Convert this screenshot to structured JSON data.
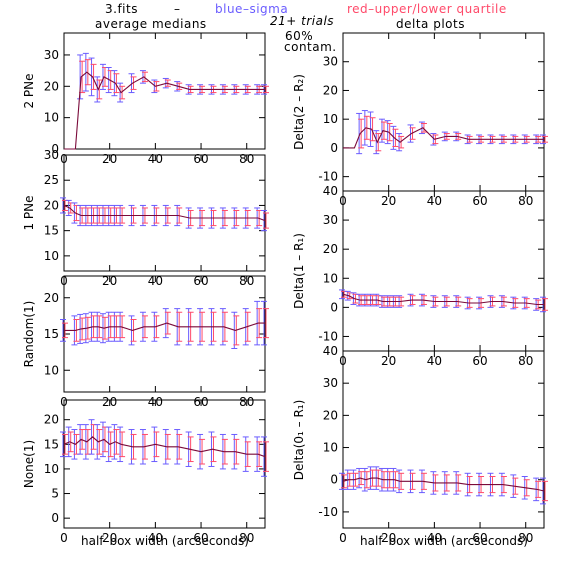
{
  "header": {
    "file": "3.fits",
    "dash": "–",
    "blue_label": "blue–sigma",
    "red_label": "red–upper/lower quartile",
    "left_title": "average medians",
    "right_title": "delta plots",
    "trials": "21+ trials",
    "contam_pct": "60%",
    "contam_label": "contam."
  },
  "colors": {
    "line": "#7a0a3a",
    "blue": "#6a5cff",
    "red": "#ff4a6a",
    "axis": "#000000"
  },
  "chart_data": [
    {
      "type": "line",
      "panel": "left-1",
      "ylabel": "2 PNe",
      "xlabel": "",
      "xlim": [
        0,
        88
      ],
      "ylim": [
        0,
        37
      ],
      "yticks": [
        0,
        10,
        20,
        30
      ],
      "xticks": [
        0,
        20,
        40,
        60,
        80
      ],
      "x": [
        0,
        2.5,
        5,
        7.5,
        10,
        12.5,
        15,
        17.5,
        20,
        22.5,
        25,
        30,
        35,
        40,
        45,
        50,
        55,
        60,
        65,
        70,
        75,
        80,
        85,
        88
      ],
      "y": [
        0,
        0,
        0,
        23,
        24.5,
        23,
        19,
        23,
        22,
        21,
        18,
        21,
        23,
        20,
        21,
        20,
        19,
        19,
        19,
        19,
        19,
        19,
        19,
        19
      ],
      "sigma": [
        0,
        0,
        0,
        7,
        6,
        6,
        4,
        4,
        4,
        4,
        3,
        3,
        2,
        2,
        1.5,
        1.5,
        1.5,
        1.5,
        1.5,
        1.5,
        1.5,
        1.5,
        1.5,
        1.5
      ],
      "quartile": [
        0,
        0,
        0,
        5,
        4,
        4,
        3,
        3,
        3,
        3,
        2,
        2,
        1.5,
        1.5,
        1,
        1,
        1,
        1,
        1,
        1,
        1,
        1,
        1,
        1
      ]
    },
    {
      "type": "line",
      "panel": "left-2",
      "ylabel": "1 PNe",
      "xlabel": "",
      "xlim": [
        0,
        88
      ],
      "ylim": [
        7,
        30
      ],
      "yticks": [
        10,
        15,
        20,
        25,
        30
      ],
      "xticks": [
        0,
        20,
        40,
        60,
        80
      ],
      "x": [
        0,
        2.5,
        5,
        7.5,
        10,
        12.5,
        15,
        17.5,
        20,
        22.5,
        25,
        30,
        35,
        40,
        45,
        50,
        55,
        60,
        65,
        70,
        75,
        80,
        85,
        88
      ],
      "y": [
        20,
        19.5,
        18.5,
        18,
        18,
        18,
        18,
        18,
        18,
        18,
        18,
        18,
        18,
        18,
        18,
        18,
        17.5,
        17.5,
        17.5,
        17.5,
        17.5,
        17.5,
        17.5,
        17
      ],
      "sigma": [
        1.5,
        1.5,
        2,
        2,
        2,
        2,
        2,
        2,
        2,
        2,
        2,
        2,
        2,
        2,
        2,
        2,
        2,
        2,
        2,
        2,
        2,
        2,
        2,
        2
      ],
      "quartile": [
        1,
        1,
        1.5,
        1.5,
        1.5,
        1.5,
        1.5,
        1.5,
        1.5,
        1.5,
        1.5,
        1.5,
        1.5,
        1.5,
        1.5,
        1.5,
        1.5,
        1.5,
        1.5,
        1.5,
        1.5,
        1.5,
        1.5,
        1.5
      ]
    },
    {
      "type": "line",
      "panel": "left-3",
      "ylabel": "Random(1)",
      "xlabel": "",
      "xlim": [
        0,
        88
      ],
      "ylim": [
        7,
        23
      ],
      "yticks": [
        10,
        15,
        20
      ],
      "xticks": [
        0,
        20,
        40,
        60,
        80
      ],
      "x": [
        0,
        5,
        7.5,
        10,
        12.5,
        15,
        17.5,
        20,
        22.5,
        25,
        30,
        35,
        40,
        45,
        50,
        55,
        60,
        65,
        70,
        75,
        80,
        85,
        88
      ],
      "y": [
        15.5,
        15.5,
        15.7,
        15.8,
        16,
        16,
        15.8,
        16,
        16,
        16,
        15.5,
        16,
        16,
        16.5,
        16,
        16,
        16,
        16,
        16,
        15.5,
        16,
        16.5,
        16.5
      ],
      "sigma": [
        1.5,
        2,
        2,
        2,
        2,
        2,
        2,
        2,
        2,
        2,
        2,
        2,
        2,
        2,
        2.5,
        2.5,
        2.5,
        2.5,
        2.5,
        2.5,
        2.5,
        3,
        3
      ],
      "quartile": [
        1,
        1.5,
        1.5,
        1.5,
        1.5,
        1.5,
        1.5,
        1.5,
        1.5,
        1.5,
        1.5,
        1.5,
        1.5,
        1.5,
        2,
        2,
        2,
        2,
        2,
        2,
        2,
        2,
        2
      ]
    },
    {
      "type": "line",
      "panel": "left-4",
      "ylabel": "None(1)",
      "xlabel": "half–box width (arcseconds)",
      "xlim": [
        0,
        88
      ],
      "ylim": [
        -2,
        24
      ],
      "yticks": [
        0,
        5,
        10,
        15,
        20
      ],
      "xticks": [
        0,
        20,
        40,
        60,
        80
      ],
      "x": [
        0,
        2.5,
        5,
        7.5,
        10,
        12.5,
        15,
        17.5,
        20,
        22.5,
        25,
        30,
        35,
        40,
        45,
        50,
        55,
        60,
        65,
        70,
        75,
        80,
        85,
        88
      ],
      "y": [
        15,
        15.5,
        15,
        16,
        15.5,
        16.5,
        15.5,
        16,
        15,
        15.5,
        15,
        14.5,
        14.5,
        15,
        14.5,
        14.5,
        14,
        13.5,
        14,
        13.5,
        13.5,
        13,
        13,
        12.5
      ],
      "sigma": [
        2.5,
        3,
        3,
        3,
        3.5,
        3.5,
        3.5,
        3.5,
        3.5,
        3.5,
        3.5,
        3.5,
        3.5,
        3.5,
        3.5,
        3.5,
        3.5,
        3.5,
        3.5,
        3.5,
        3.5,
        3.5,
        3.5,
        4
      ],
      "quartile": [
        2,
        2,
        2,
        2,
        2.5,
        2.5,
        2.5,
        2.5,
        2.5,
        2.5,
        2.5,
        2.5,
        2.5,
        2.5,
        2.5,
        2.5,
        2.5,
        2.5,
        2.5,
        2.5,
        2.5,
        2.5,
        2.5,
        3
      ]
    },
    {
      "type": "line",
      "panel": "right-1",
      "ylabel": "Delta(2 – R₂)",
      "xlabel": "",
      "xlim": [
        0,
        88
      ],
      "ylim": [
        -15,
        40
      ],
      "yticks": [
        -10,
        0,
        10,
        20,
        30
      ],
      "xticks": [
        0,
        20,
        40,
        60,
        80
      ],
      "x": [
        0,
        2.5,
        5,
        7.5,
        10,
        12.5,
        15,
        17.5,
        20,
        22.5,
        25,
        30,
        35,
        40,
        45,
        50,
        55,
        60,
        65,
        70,
        75,
        80,
        85,
        88
      ],
      "y": [
        0,
        0,
        0,
        5,
        7,
        6.5,
        2,
        6,
        5.5,
        3.5,
        2,
        5,
        7,
        3,
        4,
        4,
        3,
        3,
        3,
        3,
        3,
        3,
        3,
        3
      ],
      "sigma": [
        0,
        0,
        0,
        7,
        6,
        6,
        4,
        4,
        4,
        4,
        3,
        3,
        2,
        2,
        1.5,
        1.5,
        1.5,
        1.5,
        1.5,
        1.5,
        1.5,
        1.5,
        1.5,
        1.5
      ],
      "quartile": [
        0,
        0,
        0,
        5,
        4,
        4,
        3,
        3,
        3,
        3,
        2,
        2,
        1.5,
        1.5,
        1,
        1,
        1,
        1,
        1,
        1,
        1,
        1,
        1,
        1
      ]
    },
    {
      "type": "line",
      "panel": "right-2",
      "ylabel": "Delta(1 – R₁)",
      "xlabel": "",
      "xlim": [
        0,
        88
      ],
      "ylim": [
        -15,
        40
      ],
      "yticks": [
        -10,
        0,
        10,
        20,
        30,
        40
      ],
      "xticks": [
        0,
        20,
        40,
        60,
        80
      ],
      "x": [
        0,
        2.5,
        5,
        7.5,
        10,
        12.5,
        15,
        17.5,
        20,
        22.5,
        25,
        30,
        35,
        40,
        45,
        50,
        55,
        60,
        65,
        70,
        75,
        80,
        85,
        88
      ],
      "y": [
        4.5,
        4,
        3,
        2.5,
        2.5,
        2.5,
        2.5,
        2,
        2,
        2,
        2,
        2.5,
        2.5,
        2,
        2,
        2,
        1.5,
        1.5,
        2,
        2,
        1.5,
        1.5,
        1,
        1
      ],
      "sigma": [
        1.5,
        1.5,
        2,
        2,
        2,
        2,
        2,
        2,
        2,
        2,
        2,
        2,
        2,
        2,
        2,
        2,
        2,
        2,
        2,
        2,
        2,
        2,
        2,
        2.5
      ],
      "quartile": [
        1,
        1,
        1.5,
        1.5,
        1.5,
        1.5,
        1.5,
        1.5,
        1.5,
        1.5,
        1.5,
        1.5,
        1.5,
        1.5,
        1.5,
        1.5,
        1.5,
        1.5,
        1.5,
        1.5,
        1.5,
        1.5,
        1.5,
        2
      ]
    },
    {
      "type": "line",
      "panel": "right-3",
      "ylabel": "Delta(0₁ – R₁)",
      "xlabel": "half–box width (arcseconds)",
      "xlim": [
        0,
        88
      ],
      "ylim": [
        -15,
        40
      ],
      "yticks": [
        -10,
        0,
        10,
        20,
        30,
        40
      ],
      "xticks": [
        0,
        20,
        40,
        60,
        80
      ],
      "x": [
        0,
        2.5,
        5,
        7.5,
        10,
        12.5,
        15,
        17.5,
        20,
        22.5,
        25,
        30,
        35,
        40,
        45,
        50,
        55,
        60,
        65,
        70,
        75,
        80,
        85,
        88
      ],
      "y": [
        -0.5,
        0,
        0,
        0.5,
        0,
        0.5,
        0.5,
        0,
        0,
        0,
        -0.5,
        -0.5,
        -0.5,
        -1,
        -1,
        -1,
        -1.5,
        -1.5,
        -1.5,
        -1.5,
        -2,
        -2.5,
        -3,
        -3.5
      ],
      "sigma": [
        2.5,
        3,
        3,
        3,
        3.5,
        3.5,
        3.5,
        3.5,
        3.5,
        3.5,
        3.5,
        3.5,
        3.5,
        3.5,
        3.5,
        3.5,
        3.5,
        3.5,
        3.5,
        3.5,
        3.5,
        3.5,
        3.5,
        4
      ],
      "quartile": [
        2,
        2,
        2,
        2,
        2.5,
        2.5,
        2.5,
        2.5,
        2.5,
        2.5,
        2.5,
        2.5,
        2.5,
        2.5,
        2.5,
        2.5,
        2.5,
        2.5,
        2.5,
        2.5,
        2.5,
        2.5,
        2.5,
        3
      ]
    }
  ]
}
